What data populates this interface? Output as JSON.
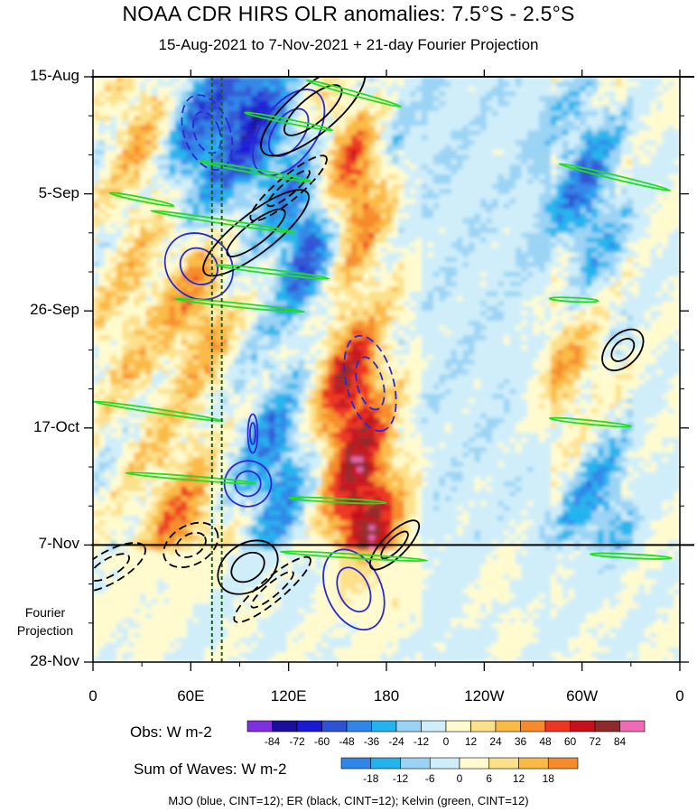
{
  "title": "NOAA CDR HIRS OLR anomalies: 7.5°S - 2.5°S",
  "subtitle": "15-Aug-2021 to 7-Nov-2021 + 21-day Fourier Projection",
  "fourier_label": "Fourier\nProjection",
  "fourier_line1": "Fourier",
  "fourier_line2": "Projection",
  "legend_note": "MJO (blue, CINT=12); ER (black, CINT=12); Kelvin (green, CINT=12)",
  "chart_data": {
    "type": "heatmap",
    "description_axis": "Hovmoller: longitude (x) vs time (y, downward)",
    "x_ticks": [
      {
        "lon": 0,
        "label": "0"
      },
      {
        "lon": 60,
        "label": "60E"
      },
      {
        "lon": 120,
        "label": "120E"
      },
      {
        "lon": 180,
        "label": "180"
      },
      {
        "lon": 240,
        "label": "120W"
      },
      {
        "lon": 300,
        "label": "60W"
      },
      {
        "lon": 360,
        "label": "0"
      }
    ],
    "x_range": [
      0,
      360
    ],
    "y_ticks": [
      {
        "day": 0,
        "label": "15-Aug"
      },
      {
        "day": 21,
        "label": "5-Sep"
      },
      {
        "day": 42,
        "label": "26-Sep"
      },
      {
        "day": 63,
        "label": "17-Oct"
      },
      {
        "day": 84,
        "label": "7-Nov"
      },
      {
        "day": 105,
        "label": "28-Nov"
      }
    ],
    "y_range_days": [
      0,
      105
    ],
    "observation_end_day": 84,
    "obs_colorbar": {
      "title": "Obs: W m-2",
      "levels": [
        -84,
        -72,
        -60,
        -48,
        -36,
        -24,
        -12,
        0,
        12,
        24,
        36,
        48,
        60,
        72,
        84
      ],
      "colors": [
        "#7f2fe0",
        "#1a0e9a",
        "#1a1ad6",
        "#2e52d6",
        "#2f86e8",
        "#23b4ee",
        "#9ad3f5",
        "#cfeefa",
        "#fffbcf",
        "#fde08a",
        "#fbb945",
        "#f68b2c",
        "#ee3522",
        "#c8101a",
        "#8e2a2a",
        "#f06ab8"
      ]
    },
    "waves_colorbar": {
      "title": "Sum of Waves: W m-2",
      "levels": [
        -18,
        -12,
        -6,
        0,
        6,
        12,
        18
      ],
      "colors": [
        "#2f86e8",
        "#23b4ee",
        "#9ad3f5",
        "#cfeefa",
        "#fffbcf",
        "#fde08a",
        "#fbb945",
        "#f68b2c"
      ]
    },
    "features": [
      {
        "lon": 30,
        "day": 10,
        "anom": 30
      },
      {
        "lon": 60,
        "day": 12,
        "anom": -45
      },
      {
        "lon": 62,
        "day": 40,
        "anom": 36
      },
      {
        "lon": 52,
        "day": 80,
        "anom": 40
      },
      {
        "lon": 20,
        "day": 45,
        "anom": 20
      },
      {
        "lon": 130,
        "day": 30,
        "anom": -50
      },
      {
        "lon": 110,
        "day": 70,
        "anom": -40
      },
      {
        "lon": 160,
        "day": 18,
        "anom": 55
      },
      {
        "lon": 155,
        "day": 55,
        "anom": 60
      },
      {
        "lon": 165,
        "day": 80,
        "anom": 70
      },
      {
        "lon": 180,
        "day": 8,
        "anom": -20
      },
      {
        "lon": 95,
        "day": 5,
        "anom": -60
      },
      {
        "lon": 300,
        "day": 20,
        "anom": -40
      },
      {
        "lon": 290,
        "day": 55,
        "anom": 30
      },
      {
        "lon": 305,
        "day": 75,
        "anom": -35
      },
      {
        "lon": 250,
        "day": 95,
        "anom": 12
      },
      {
        "lon": 60,
        "day": 95,
        "anom": -12
      },
      {
        "lon": 20,
        "day": 95,
        "anom": 10
      }
    ],
    "contours": {
      "mjo": [
        {
          "lon": 70,
          "day": 10,
          "rx": 14,
          "ry": 10,
          "angle": -20,
          "sign": -1
        },
        {
          "lon": 120,
          "day": 10,
          "rx": 30,
          "ry": 7,
          "angle": -55,
          "sign": 1
        },
        {
          "lon": 65,
          "day": 34,
          "rx": 22,
          "ry": 8,
          "angle": 40,
          "sign": 1
        },
        {
          "lon": 170,
          "day": 55,
          "rx": 30,
          "ry": 6,
          "angle": 75,
          "sign": -1
        },
        {
          "lon": 95,
          "day": 73,
          "rx": 14,
          "ry": 6,
          "angle": 75,
          "sign": 1
        },
        {
          "lon": 160,
          "day": 92,
          "rx": 26,
          "ry": 7,
          "angle": 65,
          "sign": 1
        },
        {
          "lon": 98,
          "day": 64,
          "rx": 3,
          "ry": 5,
          "angle": 0,
          "sign": 1
        }
      ],
      "er": [
        {
          "lon": 135,
          "day": 6,
          "rx": 40,
          "ry": 6,
          "angle": -40,
          "sign": 1
        },
        {
          "lon": 100,
          "day": 28,
          "rx": 40,
          "ry": 5,
          "angle": -38,
          "sign": 1
        },
        {
          "lon": 120,
          "day": 20,
          "rx": 30,
          "ry": 3,
          "angle": -40,
          "sign": -1
        },
        {
          "lon": 325,
          "day": 49,
          "rx": 15,
          "ry": 4,
          "angle": -45,
          "sign": 1
        },
        {
          "lon": 185,
          "day": 84,
          "rx": 20,
          "ry": 3,
          "angle": -45,
          "sign": 1
        },
        {
          "lon": 95,
          "day": 88,
          "rx": 20,
          "ry": 6,
          "angle": -35,
          "sign": 1
        },
        {
          "lon": 60,
          "day": 84,
          "rx": 18,
          "ry": 5,
          "angle": -30,
          "sign": -1
        },
        {
          "lon": 10,
          "day": 88,
          "rx": 25,
          "ry": 4,
          "angle": -30,
          "sign": -1
        },
        {
          "lon": 110,
          "day": 92,
          "rx": 30,
          "ry": 3,
          "angle": -40,
          "sign": -1
        }
      ],
      "kelvin": [
        {
          "lon": 160,
          "day": 3,
          "len": 60,
          "slope": 0.28
        },
        {
          "lon": 120,
          "day": 8,
          "len": 55,
          "slope": 0.2
        },
        {
          "lon": 100,
          "day": 17,
          "len": 70,
          "slope": 0.18
        },
        {
          "lon": 30,
          "day": 22,
          "len": 40,
          "slope": 0.2
        },
        {
          "lon": 80,
          "day": 26,
          "len": 90,
          "slope": 0.15
        },
        {
          "lon": 110,
          "day": 35,
          "len": 70,
          "slope": 0.12
        },
        {
          "lon": 320,
          "day": 18,
          "len": 70,
          "slope": 0.24
        },
        {
          "lon": 40,
          "day": 60,
          "len": 80,
          "slope": 0.15
        },
        {
          "lon": 90,
          "day": 41,
          "len": 80,
          "slope": 0.1
        },
        {
          "lon": 305,
          "day": 62,
          "len": 50,
          "slope": 0.1
        },
        {
          "lon": 295,
          "day": 40,
          "len": 30,
          "slope": 0.05
        },
        {
          "lon": 60,
          "day": 72,
          "len": 80,
          "slope": 0.08
        },
        {
          "lon": 150,
          "day": 76,
          "len": 60,
          "slope": 0.05
        },
        {
          "lon": 160,
          "day": 86,
          "len": 90,
          "slope": 0.06
        },
        {
          "lon": 330,
          "day": 86,
          "len": 50,
          "slope": 0.05
        }
      ]
    },
    "dashed_reference_lons": [
      73,
      79
    ]
  }
}
